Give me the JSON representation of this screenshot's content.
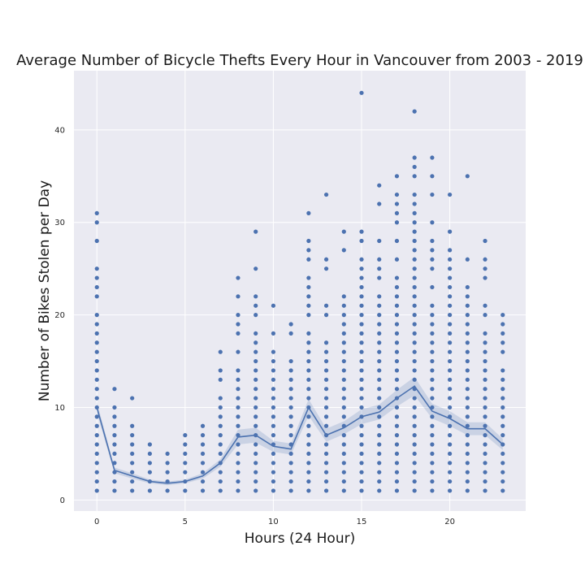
{
  "chart_data": {
    "type": "scatter",
    "title": "Average Number of Bicycle Thefts Every Hour in Vancouver from 2003 - 2019",
    "xlabel": "Hours (24 Hour)",
    "ylabel": "Number of Bikes Stolen per Day",
    "xlim": [
      -1.3,
      24.3
    ],
    "ylim": [
      -1.2,
      46.4
    ],
    "xticks": [
      0,
      5,
      10,
      15,
      20
    ],
    "yticks": [
      0,
      10,
      20,
      30,
      40
    ],
    "grid": true,
    "colors": {
      "background": "#eaeaf2",
      "grid": "#ffffff",
      "points": "#4c72b0",
      "band": "#4c72b0"
    },
    "points": [
      {
        "x": 0,
        "y": [
          1,
          2,
          3,
          4,
          5,
          6,
          7,
          8,
          9,
          10,
          11,
          12,
          13,
          14,
          15,
          16,
          17,
          18,
          19,
          20,
          22,
          23,
          24,
          25,
          28,
          30,
          31
        ]
      },
      {
        "x": 1,
        "y": [
          1,
          2,
          3,
          4,
          5,
          6,
          7,
          8,
          9,
          10,
          12
        ]
      },
      {
        "x": 2,
        "y": [
          1,
          2,
          3,
          4,
          5,
          6,
          7,
          8,
          11
        ]
      },
      {
        "x": 3,
        "y": [
          1,
          2,
          3,
          4,
          5,
          6
        ]
      },
      {
        "x": 4,
        "y": [
          1,
          2,
          3,
          4,
          5
        ]
      },
      {
        "x": 5,
        "y": [
          1,
          2,
          3,
          4,
          5,
          6,
          7
        ]
      },
      {
        "x": 6,
        "y": [
          1,
          2,
          3,
          4,
          5,
          6,
          7,
          8
        ]
      },
      {
        "x": 7,
        "y": [
          1,
          2,
          3,
          4,
          5,
          6,
          7,
          8,
          9,
          10,
          11,
          13,
          14,
          16
        ]
      },
      {
        "x": 8,
        "y": [
          1,
          2,
          3,
          4,
          5,
          6,
          7,
          8,
          9,
          10,
          11,
          12,
          13,
          14,
          16,
          18,
          19,
          20,
          22,
          24
        ]
      },
      {
        "x": 9,
        "y": [
          1,
          2,
          3,
          4,
          5,
          6,
          7,
          8,
          9,
          10,
          11,
          12,
          13,
          14,
          15,
          16,
          17,
          18,
          20,
          21,
          22,
          25,
          29
        ]
      },
      {
        "x": 10,
        "y": [
          1,
          2,
          3,
          4,
          5,
          6,
          7,
          8,
          9,
          10,
          11,
          12,
          13,
          14,
          15,
          16,
          18,
          21
        ]
      },
      {
        "x": 11,
        "y": [
          1,
          2,
          3,
          4,
          5,
          6,
          7,
          8,
          9,
          10,
          11,
          12,
          13,
          14,
          15,
          18,
          19
        ]
      },
      {
        "x": 12,
        "y": [
          1,
          2,
          3,
          4,
          5,
          6,
          7,
          8,
          9,
          10,
          11,
          12,
          13,
          14,
          15,
          16,
          17,
          18,
          20,
          21,
          22,
          23,
          24,
          26,
          27,
          28,
          31
        ]
      },
      {
        "x": 13,
        "y": [
          1,
          2,
          3,
          4,
          5,
          6,
          7,
          8,
          9,
          10,
          11,
          12,
          13,
          14,
          15,
          16,
          17,
          20,
          21,
          25,
          26,
          33
        ]
      },
      {
        "x": 14,
        "y": [
          1,
          2,
          3,
          4,
          5,
          6,
          7,
          8,
          9,
          10,
          11,
          12,
          13,
          14,
          15,
          16,
          17,
          18,
          19,
          20,
          21,
          22,
          27,
          29
        ]
      },
      {
        "x": 15,
        "y": [
          1,
          2,
          3,
          4,
          5,
          6,
          7,
          8,
          9,
          10,
          11,
          12,
          13,
          14,
          15,
          16,
          17,
          18,
          19,
          20,
          21,
          22,
          23,
          24,
          25,
          26,
          28,
          29,
          44
        ]
      },
      {
        "x": 16,
        "y": [
          1,
          2,
          3,
          4,
          5,
          6,
          7,
          8,
          9,
          10,
          11,
          12,
          13,
          14,
          15,
          16,
          17,
          18,
          19,
          20,
          21,
          22,
          24,
          25,
          26,
          28,
          32,
          34
        ]
      },
      {
        "x": 17,
        "y": [
          1,
          2,
          3,
          4,
          5,
          6,
          7,
          8,
          9,
          10,
          11,
          12,
          13,
          14,
          15,
          16,
          17,
          18,
          19,
          20,
          21,
          22,
          23,
          24,
          26,
          28,
          30,
          31,
          32,
          33,
          35
        ]
      },
      {
        "x": 18,
        "y": [
          1,
          2,
          3,
          4,
          5,
          6,
          7,
          8,
          9,
          10,
          11,
          12,
          13,
          14,
          15,
          16,
          17,
          18,
          19,
          20,
          21,
          22,
          23,
          24,
          25,
          26,
          27,
          28,
          29,
          30,
          31,
          32,
          33,
          35,
          36,
          37,
          42
        ]
      },
      {
        "x": 19,
        "y": [
          1,
          2,
          3,
          4,
          5,
          6,
          7,
          8,
          9,
          10,
          11,
          12,
          13,
          14,
          15,
          16,
          17,
          18,
          19,
          20,
          21,
          23,
          25,
          26,
          27,
          28,
          30,
          33,
          35,
          37
        ]
      },
      {
        "x": 20,
        "y": [
          1,
          2,
          3,
          4,
          5,
          6,
          7,
          8,
          9,
          10,
          11,
          12,
          13,
          14,
          15,
          16,
          17,
          18,
          19,
          20,
          21,
          22,
          23,
          24,
          25,
          26,
          27,
          29,
          33
        ]
      },
      {
        "x": 21,
        "y": [
          1,
          2,
          3,
          4,
          5,
          6,
          7,
          8,
          9,
          10,
          11,
          12,
          13,
          14,
          15,
          16,
          17,
          18,
          19,
          20,
          21,
          22,
          23,
          26,
          35
        ]
      },
      {
        "x": 22,
        "y": [
          1,
          2,
          3,
          4,
          5,
          6,
          7,
          8,
          9,
          10,
          11,
          12,
          13,
          14,
          15,
          16,
          17,
          18,
          20,
          21,
          24,
          25,
          26,
          28
        ]
      },
      {
        "x": 23,
        "y": [
          1,
          2,
          3,
          4,
          5,
          6,
          7,
          8,
          9,
          10,
          11,
          12,
          13,
          14,
          16,
          17,
          18,
          19,
          20
        ]
      }
    ],
    "mean_line": {
      "x": [
        0,
        1,
        2,
        3,
        4,
        5,
        6,
        7,
        8,
        9,
        10,
        11,
        12,
        13,
        14,
        15,
        16,
        17,
        18,
        19,
        20,
        21,
        22,
        23
      ],
      "y": [
        10.0,
        3.2,
        2.6,
        2.0,
        1.8,
        2.0,
        2.6,
        4.0,
        6.8,
        7.0,
        5.8,
        5.5,
        10.0,
        7.0,
        7.8,
        9.0,
        9.5,
        11.0,
        12.3,
        9.6,
        8.8,
        7.7,
        7.7,
        6.0
      ],
      "ci_half_width": [
        0.6,
        0.3,
        0.3,
        0.2,
        0.2,
        0.2,
        0.3,
        0.4,
        0.8,
        0.8,
        0.6,
        0.6,
        0.9,
        0.7,
        0.7,
        0.8,
        0.8,
        0.9,
        1.0,
        0.8,
        0.8,
        0.7,
        0.7,
        0.6
      ]
    }
  }
}
